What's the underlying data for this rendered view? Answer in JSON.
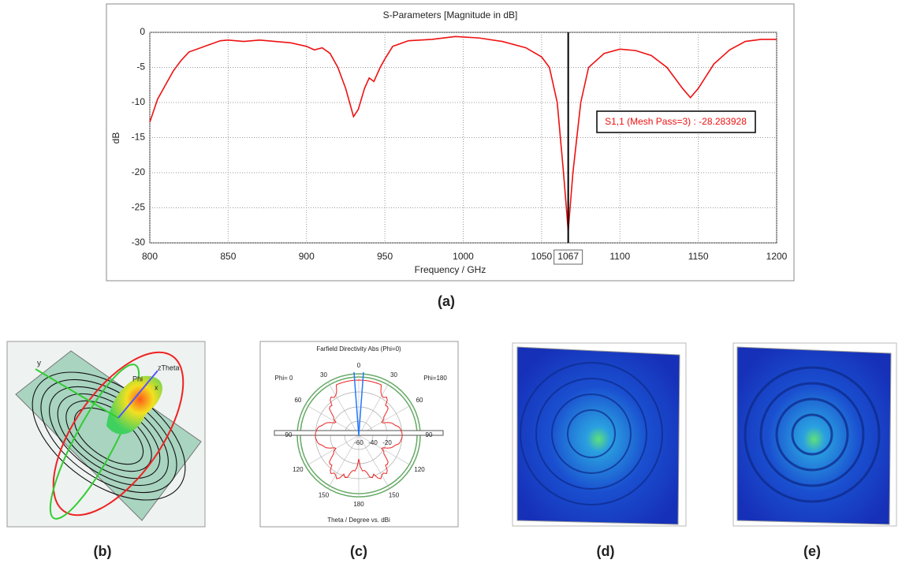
{
  "chart_data": {
    "type": "line",
    "title": "S-Parameters [Magnitude in dB]",
    "x_label": "Frequency / GHz",
    "y_label": "dB",
    "x": [
      800,
      805,
      810,
      815,
      820,
      825,
      835,
      845,
      850,
      860,
      870,
      880,
      890,
      900,
      905,
      910,
      915,
      920,
      925,
      930,
      933,
      937,
      940,
      943,
      947,
      950,
      955,
      965,
      980,
      995,
      1010,
      1025,
      1040,
      1050,
      1055,
      1060,
      1064,
      1067,
      1070,
      1075,
      1080,
      1090,
      1100,
      1110,
      1120,
      1130,
      1140,
      1145,
      1150,
      1160,
      1170,
      1180,
      1190,
      1200
    ],
    "series": [
      {
        "name": "S1,1",
        "color": "#ee1111",
        "values": [
          -12.8,
          -9.5,
          -7.5,
          -5.5,
          -4,
          -2.8,
          -2,
          -1.2,
          -1.1,
          -1.3,
          -1.1,
          -1.3,
          -1.5,
          -2,
          -2.5,
          -2.2,
          -3,
          -5,
          -8,
          -12,
          -11,
          -8,
          -6.5,
          -7,
          -5,
          -3.8,
          -2,
          -1.2,
          -1,
          -0.6,
          -0.8,
          -1.3,
          -2.2,
          -3.5,
          -5,
          -10,
          -20,
          -28.3,
          -20,
          -10,
          -5,
          -3,
          -2.4,
          -2.6,
          -3.3,
          -5,
          -8,
          -9.3,
          -8,
          -4.5,
          -2.5,
          -1.3,
          -1,
          -1
        ]
      }
    ],
    "xlim": [
      800,
      1200
    ],
    "xticks": [
      800,
      850,
      900,
      950,
      1000,
      1050,
      1100,
      1150,
      1200
    ],
    "ylim": [
      -30,
      0
    ],
    "yticks": [
      0,
      -5,
      -10,
      -15,
      -20,
      -25,
      -30
    ],
    "grid": true,
    "marker_x": 1067,
    "annotation": "S1,1 (Mesh Pass=3) : -28.283928",
    "caption": "(a)"
  },
  "panels": {
    "b": {
      "caption": "(b)",
      "axis_labels": [
        "y",
        "Phi",
        "zTheta",
        "x"
      ]
    },
    "c": {
      "caption": "(c)",
      "title": "Farfield Directivity Abs (Phi=0)",
      "left": "Phi= 0",
      "right": "Phi=180",
      "footer": "Theta / Degree vs. dBi",
      "angle_labels": [
        "0",
        "30",
        "60",
        "90",
        "120",
        "150",
        "180"
      ],
      "radial_labels": [
        "-60",
        "-40",
        "-20"
      ]
    },
    "d": {
      "caption": "(d)"
    },
    "e": {
      "caption": "(e)"
    }
  }
}
